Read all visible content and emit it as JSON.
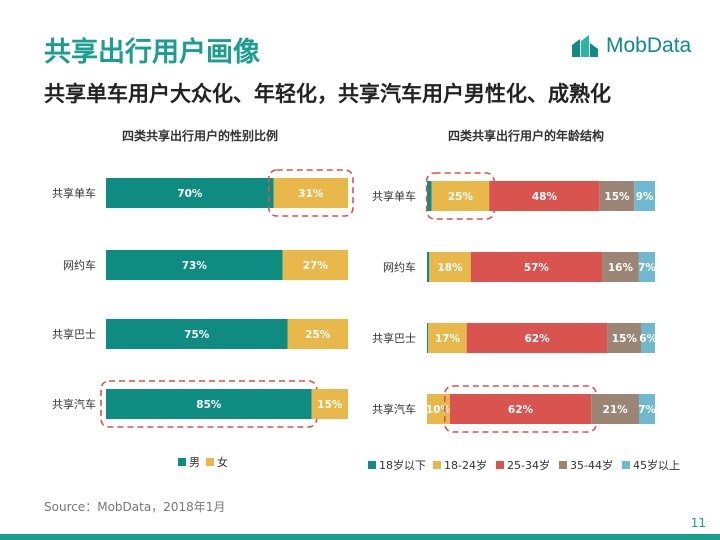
{
  "page": {
    "title": "共享出行用户画像",
    "subtitle": "共享单车用户大众化、年轻化，共享汽车用户男性化、成熟化",
    "logo_text": "MobData",
    "source": "Source：MobData，2018年1月",
    "page_number": "11"
  },
  "colors": {
    "teal": "#0f8c82",
    "yellow": "#e9b84a",
    "red": "#d9534f",
    "brown": "#9b8676",
    "lightblue": "#6fb8cf",
    "dashed": "#d9534f"
  },
  "chart_data": [
    {
      "type": "bar",
      "orientation": "horizontal",
      "stacked": true,
      "title": "四类共享出行用户的性别比例",
      "categories": [
        "共享单车",
        "网约车",
        "共享巴士",
        "共享汽车"
      ],
      "series": [
        {
          "name": "男",
          "values": [
            70,
            73,
            75,
            85
          ],
          "labels": [
            "70%",
            "73%",
            "75%",
            "85%"
          ],
          "color": "#0f8c82"
        },
        {
          "name": "女",
          "values": [
            31,
            27,
            25,
            15
          ],
          "labels": [
            "31%",
            "27%",
            "25%",
            "15%"
          ],
          "color": "#e9b84a"
        }
      ],
      "legend_position": "bottom",
      "highlights": [
        {
          "category": "共享单车",
          "series": "女"
        },
        {
          "category": "共享汽车",
          "series": "男"
        }
      ]
    },
    {
      "type": "bar",
      "orientation": "horizontal",
      "stacked": true,
      "title": "四类共享出行用户的年龄结构",
      "categories": [
        "共享单车",
        "网约车",
        "共享巴士",
        "共享汽车"
      ],
      "series": [
        {
          "name": "18岁以下",
          "values": [
            2,
            1,
            0.5,
            0
          ],
          "labels": [
            "",
            "",
            "",
            ""
          ],
          "color": "#0f8c82"
        },
        {
          "name": "18-24岁",
          "values": [
            25,
            18,
            17,
            10
          ],
          "labels": [
            "25%",
            "18%",
            "17%",
            "10%"
          ],
          "color": "#e9b84a"
        },
        {
          "name": "25-34岁",
          "values": [
            48,
            57,
            62,
            62
          ],
          "labels": [
            "48%",
            "57%",
            "62%",
            "62%"
          ],
          "color": "#d9534f"
        },
        {
          "name": "35-44岁",
          "values": [
            15,
            16,
            15,
            21
          ],
          "labels": [
            "15%",
            "16%",
            "15%",
            "21%"
          ],
          "color": "#9b8676"
        },
        {
          "name": "45岁以上",
          "values": [
            9,
            7,
            6,
            7
          ],
          "labels": [
            "9%",
            "7%",
            "6%",
            "7%"
          ],
          "color": "#6fb8cf"
        }
      ],
      "legend_position": "bottom",
      "highlights": [
        {
          "category": "共享单车",
          "series": "18-24岁"
        },
        {
          "category": "共享汽车",
          "series": "25-34岁"
        }
      ]
    }
  ]
}
